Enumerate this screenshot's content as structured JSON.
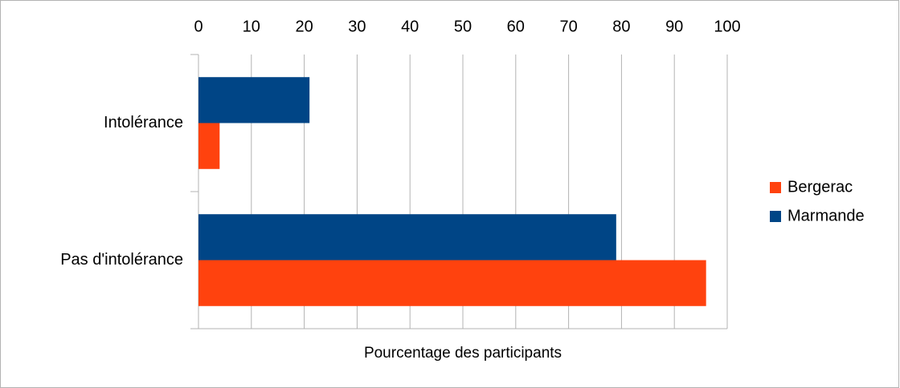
{
  "chart_data": {
    "type": "bar",
    "orientation": "horizontal",
    "categories": [
      "Intolérance",
      "Pas d'intolérance"
    ],
    "series": [
      {
        "name": "Bergerac",
        "color": "#ff420e",
        "values": [
          4,
          96
        ]
      },
      {
        "name": "Marmande",
        "color": "#004586",
        "values": [
          21,
          79
        ]
      }
    ],
    "xlabel": "Pourcentage des participants",
    "xlim": [
      0,
      100
    ],
    "xticks": [
      0,
      10,
      20,
      30,
      40,
      50,
      60,
      70,
      80,
      90,
      100
    ],
    "grid": true,
    "legend": "right"
  }
}
